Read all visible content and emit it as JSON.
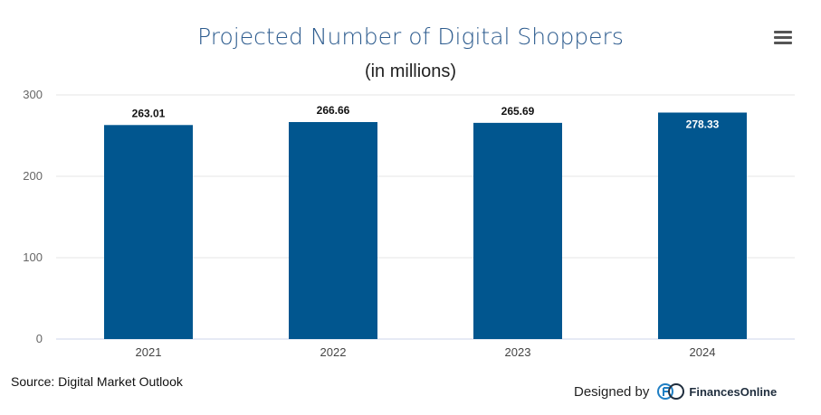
{
  "chart_data": {
    "type": "bar",
    "title": "Projected Number of Digital Shoppers",
    "subtitle": "(in millions)",
    "categories": [
      "2021",
      "2022",
      "2023",
      "2024"
    ],
    "values": [
      263.01,
      266.66,
      265.69,
      278.33
    ],
    "value_labels": [
      "263.01",
      "266.66",
      "265.69",
      "278.33"
    ],
    "ylim": [
      0,
      300
    ],
    "yticks": [
      0,
      100,
      200,
      300
    ],
    "ytick_labels": [
      "0",
      "100",
      "200",
      "300"
    ],
    "grid": true,
    "bar_color": "#01568f"
  },
  "footer": {
    "source": "Source: Digital Market Outlook",
    "designed_by": "Designed by",
    "brand": "FinancesOnline"
  },
  "icons": {
    "menu": "hamburger-menu-icon",
    "logo": "financesonline-logo-icon"
  }
}
